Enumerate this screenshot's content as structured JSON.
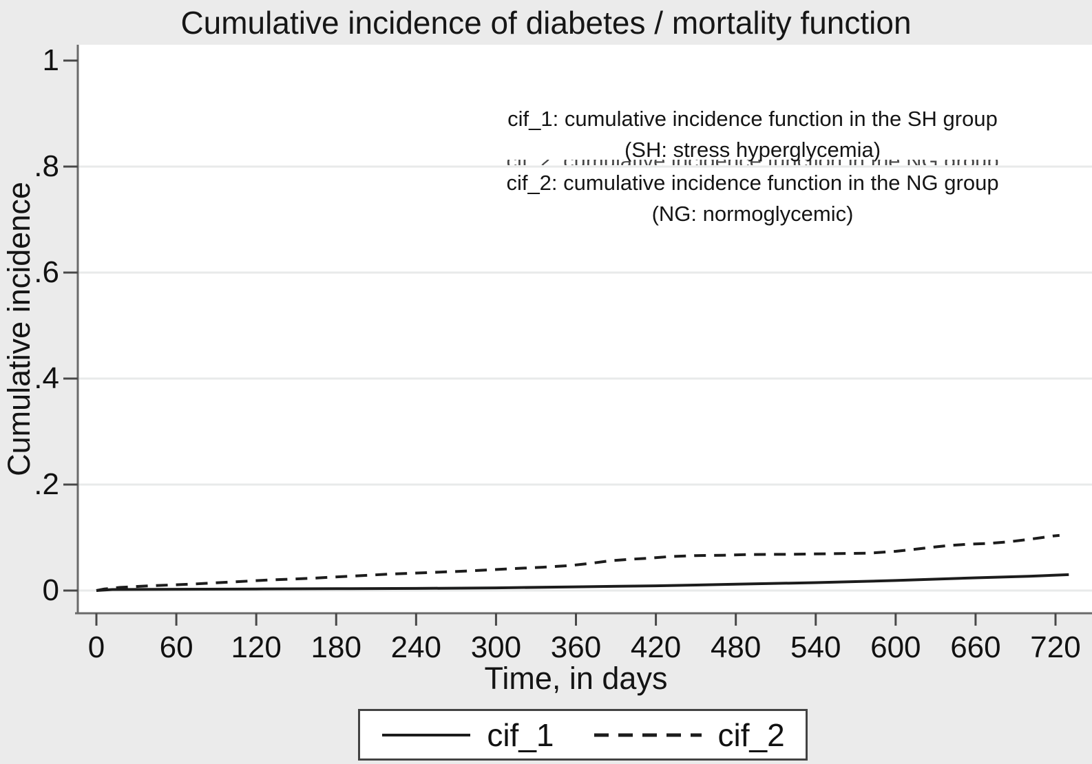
{
  "chart_data": {
    "type": "line",
    "title": "Cumulative incidence of diabetes / mortality function",
    "xlabel": "Time, in days",
    "ylabel": "Cumulative incidence",
    "x_ticks": [
      "0",
      "60",
      "120",
      "180",
      "240",
      "300",
      "360",
      "420",
      "480",
      "540",
      "600",
      "660",
      "720"
    ],
    "y_ticks": [
      {
        "label": "0",
        "value": 0
      },
      {
        "label": ".2",
        "value": 0.2
      },
      {
        "label": ".4",
        "value": 0.4
      },
      {
        "label": ".6",
        "value": 0.6
      },
      {
        "label": ".8",
        "value": 0.8
      },
      {
        "label": "1",
        "value": 1
      }
    ],
    "grid_values": [
      0,
      0.2,
      0.4,
      0.6,
      0.8
    ],
    "xlim": [
      -14,
      748
    ],
    "ylim": [
      -0.043,
      1.03
    ],
    "grid": true,
    "legend_position": "bottom-center",
    "series": [
      {
        "name": "cif_1",
        "style": "solid",
        "color": "#1c1c1c",
        "points": [
          [
            0,
            0
          ],
          [
            12,
            0.002
          ],
          [
            60,
            0.0025
          ],
          [
            120,
            0.003
          ],
          [
            180,
            0.0035
          ],
          [
            240,
            0.004
          ],
          [
            300,
            0.005
          ],
          [
            360,
            0.007
          ],
          [
            420,
            0.009
          ],
          [
            480,
            0.012
          ],
          [
            540,
            0.015
          ],
          [
            600,
            0.019
          ],
          [
            660,
            0.024
          ],
          [
            700,
            0.027
          ],
          [
            730,
            0.03
          ]
        ]
      },
      {
        "name": "cif_2",
        "style": "dashed",
        "color": "#1c1c1c",
        "points": [
          [
            0,
            0
          ],
          [
            6,
            0.003
          ],
          [
            18,
            0.006
          ],
          [
            40,
            0.009
          ],
          [
            70,
            0.012
          ],
          [
            100,
            0.016
          ],
          [
            130,
            0.02
          ],
          [
            160,
            0.023
          ],
          [
            190,
            0.027
          ],
          [
            220,
            0.031
          ],
          [
            250,
            0.034
          ],
          [
            280,
            0.037
          ],
          [
            310,
            0.041
          ],
          [
            335,
            0.044
          ],
          [
            355,
            0.047
          ],
          [
            370,
            0.051
          ],
          [
            385,
            0.056
          ],
          [
            400,
            0.059
          ],
          [
            415,
            0.061
          ],
          [
            430,
            0.064
          ],
          [
            450,
            0.066
          ],
          [
            470,
            0.0665
          ],
          [
            490,
            0.068
          ],
          [
            520,
            0.0685
          ],
          [
            550,
            0.0695
          ],
          [
            580,
            0.0705
          ],
          [
            600,
            0.074
          ],
          [
            615,
            0.078
          ],
          [
            628,
            0.082
          ],
          [
            640,
            0.085
          ],
          [
            655,
            0.0875
          ],
          [
            670,
            0.089
          ],
          [
            685,
            0.092
          ],
          [
            698,
            0.096
          ],
          [
            710,
            0.1
          ],
          [
            718,
            0.103
          ],
          [
            723,
            0.104
          ]
        ]
      }
    ],
    "annotation": {
      "lines": [
        "cif_1: cumulative incidence function in the SH group",
        "(SH: stress hyperglycemia)",
        "cif_2: cumulative incidence function in the NG group",
        "(NG: normoglycemic)"
      ]
    },
    "ghost_text": "cif_2: cumulative incidence function in the NG group"
  },
  "legend": {
    "entries": [
      {
        "label": "cif_1",
        "style": "solid"
      },
      {
        "label": "cif_2",
        "style": "dashed"
      }
    ]
  },
  "colors": {
    "background": "#ebebeb",
    "plot_background": "#ffffff",
    "grid": "#e8eaea",
    "axis": "#6a6a6a",
    "tick": "#484848",
    "text": "#111111",
    "line": "#1c1c1c"
  }
}
